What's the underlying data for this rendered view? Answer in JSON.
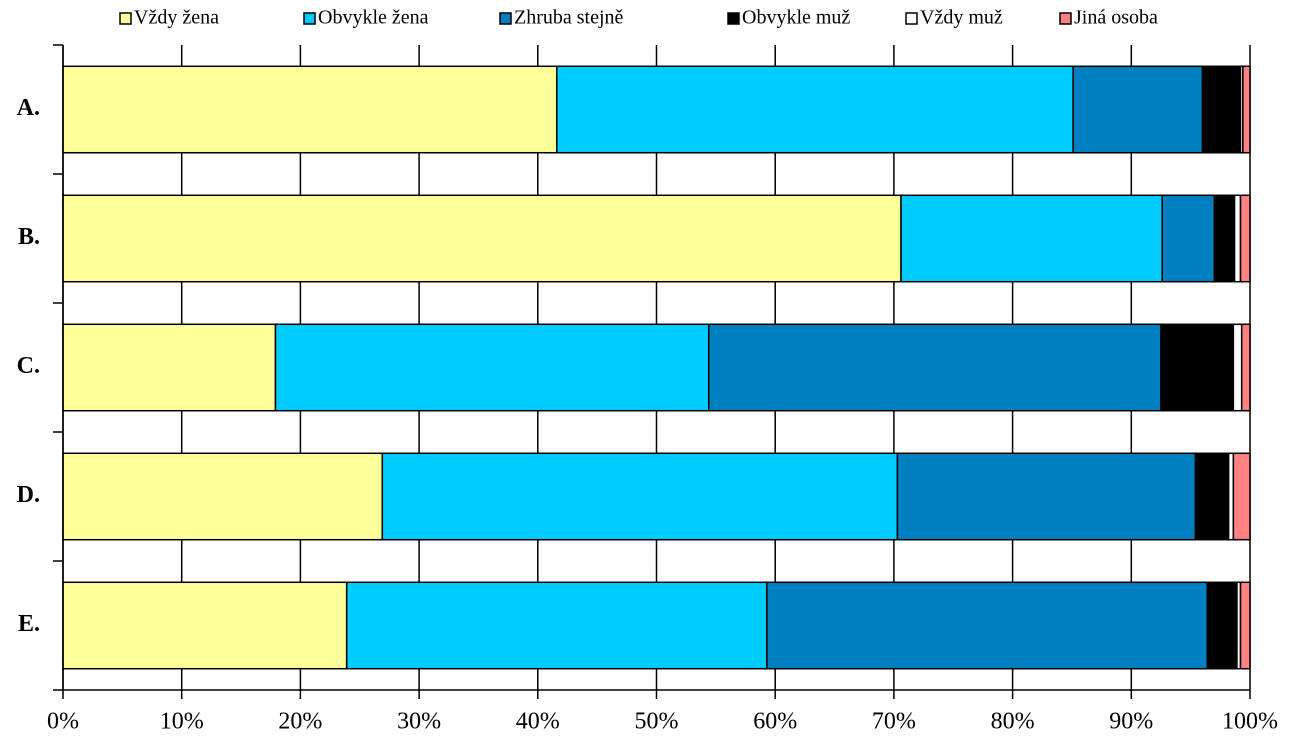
{
  "chart_data": {
    "type": "stacked_bar_horizontal",
    "categories": [
      "A.",
      "B.",
      "C.",
      "D.",
      "E."
    ],
    "series": [
      {
        "name": "Vždy žena",
        "color": "#FFFF99",
        "values": [
          41.6,
          70.6,
          17.9,
          26.9,
          23.9
        ]
      },
      {
        "name": "Obvykle žena",
        "color": "#00CCFF",
        "values": [
          43.5,
          22.0,
          36.5,
          43.4,
          35.4
        ]
      },
      {
        "name": "Zhruba stejně",
        "color": "#0080C0",
        "values": [
          10.9,
          4.4,
          38.1,
          25.1,
          37.1
        ]
      },
      {
        "name": "Obvykle muž",
        "color": "#000000",
        "values": [
          3.2,
          1.7,
          6.1,
          2.8,
          2.5
        ]
      },
      {
        "name": "Vždy muž",
        "color": "#FFFFFF",
        "values": [
          0.2,
          0.5,
          0.7,
          0.4,
          0.3
        ]
      },
      {
        "name": "Jiná osoba",
        "color": "#FF8080",
        "values": [
          0.6,
          0.8,
          0.7,
          1.4,
          0.8
        ]
      }
    ],
    "xlim": [
      0,
      100
    ],
    "xticks": [
      {
        "value": 0,
        "label": "0%"
      },
      {
        "value": 10,
        "label": "10%"
      },
      {
        "value": 20,
        "label": "20%"
      },
      {
        "value": 30,
        "label": "30%"
      },
      {
        "value": 40,
        "label": "40%"
      },
      {
        "value": 50,
        "label": "50%"
      },
      {
        "value": 60,
        "label": "60%"
      },
      {
        "value": 70,
        "label": "70%"
      },
      {
        "value": 80,
        "label": "80%"
      },
      {
        "value": 90,
        "label": "90%"
      },
      {
        "value": 100,
        "label": "100%"
      }
    ],
    "grid": true,
    "legend": "top"
  }
}
